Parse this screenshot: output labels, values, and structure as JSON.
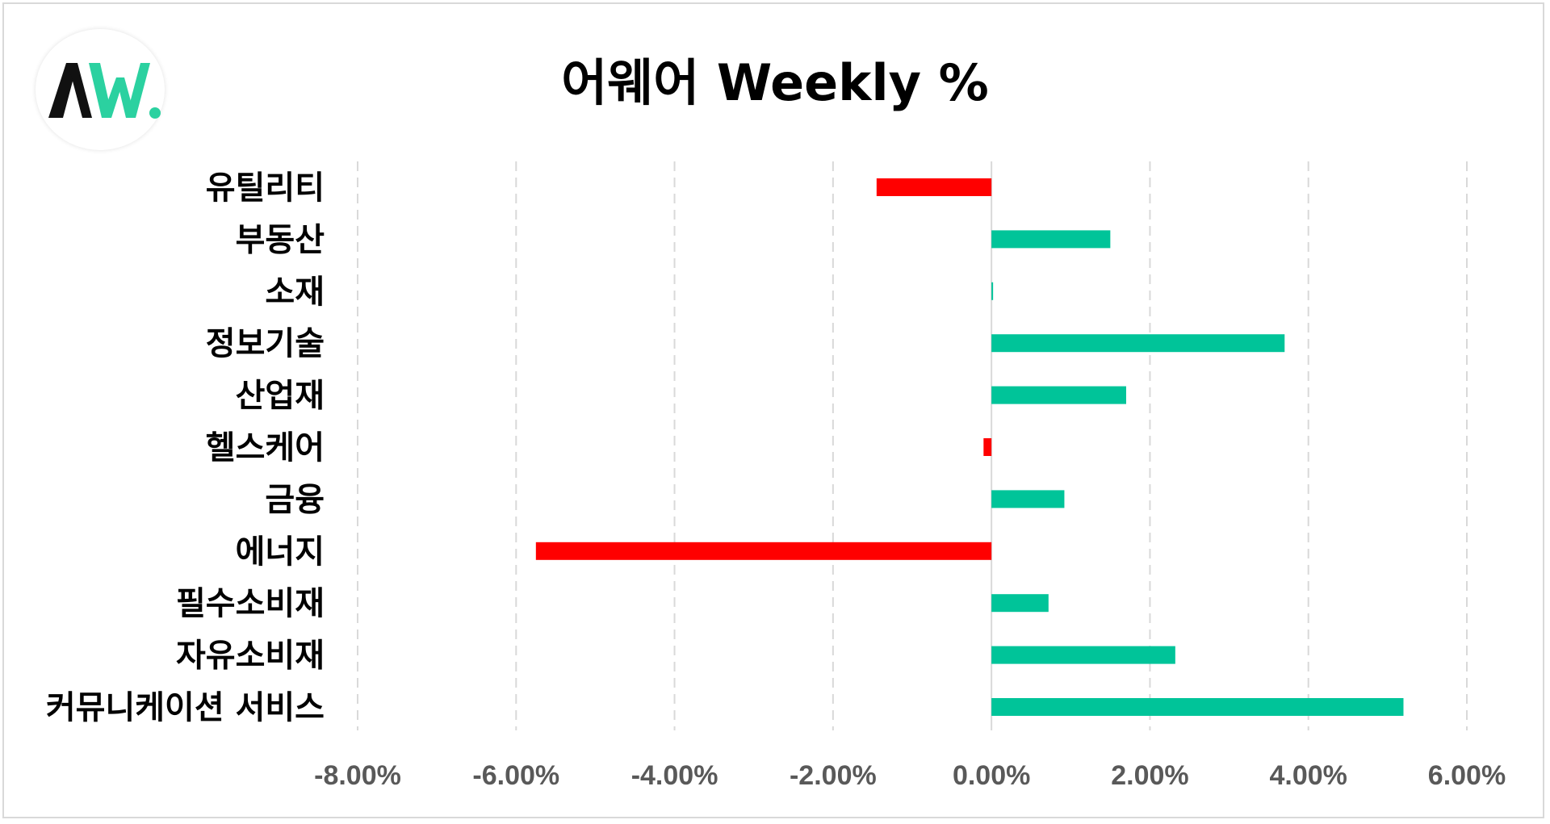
{
  "chart_data": {
    "type": "bar",
    "orientation": "horizontal",
    "title": "어웨어 Weekly %",
    "categories": [
      "유틸리티",
      "부동산",
      "소재",
      "정보기술",
      "산업재",
      "헬스케어",
      "금융",
      "에너지",
      "필수소비재",
      "자유소비재",
      "커뮤니케이션 서비스"
    ],
    "values": [
      -1.45,
      1.5,
      0.02,
      3.7,
      1.7,
      -0.1,
      0.92,
      -5.75,
      0.72,
      2.32,
      5.2
    ],
    "xlim": [
      -8,
      6
    ],
    "xticks": [
      -8,
      -6,
      -4,
      -2,
      0,
      2,
      4,
      6
    ],
    "xtick_labels": [
      "-8.00%",
      "-6.00%",
      "-4.00%",
      "-2.00%",
      "0.00%",
      "2.00%",
      "4.00%",
      "6.00%"
    ],
    "grid": "vertical-dashed",
    "colors": {
      "positive": "#00c499",
      "negative": "#ff0000",
      "grid": "#d9d9d9",
      "axis": "#d9d9d9"
    }
  },
  "logo": {
    "name": "aw-logo",
    "colors": {
      "dark": "#111111",
      "accent": "#2bd1a0"
    }
  }
}
